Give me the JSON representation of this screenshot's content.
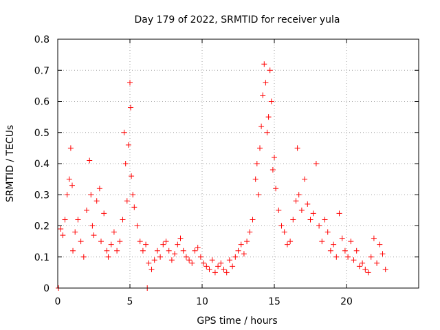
{
  "chart_data": {
    "type": "scatter",
    "title": "Day 179 of 2022, SRMTID for receiver yula",
    "xlabel": "GPS time / hours",
    "ylabel": "SRMTID / TECUs",
    "xlim": [
      0,
      25
    ],
    "ylim": [
      0,
      0.8
    ],
    "xticks": [
      0,
      5,
      10,
      15,
      20
    ],
    "yticks": [
      0,
      0.1,
      0.2,
      0.3,
      0.4,
      0.5,
      0.6,
      0.7,
      0.8
    ],
    "grid": true,
    "marker": "+",
    "color": "#ff0000",
    "series": [
      {
        "name": "SRMTID",
        "x": [
          0.05,
          6.2,
          0.2,
          0.35,
          0.5,
          0.65,
          0.8,
          0.9,
          1.0,
          1.05,
          1.2,
          1.4,
          1.6,
          1.8,
          2.0,
          2.2,
          2.3,
          2.4,
          2.5,
          2.7,
          2.9,
          3.0,
          3.2,
          3.4,
          3.5,
          3.7,
          3.9,
          4.1,
          4.3,
          4.5,
          4.6,
          4.7,
          4.8,
          4.9,
          5.0,
          5.05,
          5.1,
          5.2,
          5.3,
          5.5,
          5.7,
          5.9,
          6.1,
          6.3,
          6.5,
          6.7,
          6.9,
          7.1,
          7.3,
          7.5,
          7.7,
          7.9,
          8.1,
          8.3,
          8.5,
          8.7,
          8.9,
          9.1,
          9.3,
          9.5,
          9.7,
          9.9,
          10.1,
          10.3,
          10.5,
          10.7,
          10.9,
          11.1,
          11.3,
          11.5,
          11.7,
          11.9,
          12.1,
          12.3,
          12.5,
          12.7,
          12.9,
          13.1,
          13.3,
          13.5,
          13.7,
          13.8,
          13.9,
          14.0,
          14.1,
          14.2,
          14.3,
          14.4,
          14.5,
          14.6,
          14.7,
          14.8,
          14.9,
          15.0,
          15.1,
          15.3,
          15.5,
          15.7,
          15.9,
          16.1,
          16.3,
          16.5,
          16.6,
          16.7,
          16.9,
          17.1,
          17.3,
          17.5,
          17.7,
          17.9,
          18.1,
          18.3,
          18.5,
          18.7,
          18.9,
          19.1,
          19.3,
          19.5,
          19.7,
          19.9,
          20.1,
          20.3,
          20.5,
          20.7,
          20.9,
          21.1,
          21.3,
          21.5,
          21.7,
          21.9,
          22.1,
          22.3,
          22.5,
          22.7
        ],
        "y": [
          0.0,
          0.0,
          0.19,
          0.17,
          0.22,
          0.3,
          0.35,
          0.45,
          0.33,
          0.12,
          0.18,
          0.22,
          0.15,
          0.1,
          0.25,
          0.41,
          0.3,
          0.2,
          0.17,
          0.28,
          0.32,
          0.15,
          0.24,
          0.12,
          0.1,
          0.14,
          0.18,
          0.12,
          0.15,
          0.22,
          0.5,
          0.4,
          0.28,
          0.46,
          0.66,
          0.58,
          0.36,
          0.3,
          0.26,
          0.2,
          0.15,
          0.12,
          0.14,
          0.08,
          0.06,
          0.09,
          0.12,
          0.1,
          0.14,
          0.15,
          0.12,
          0.09,
          0.11,
          0.14,
          0.16,
          0.12,
          0.1,
          0.09,
          0.08,
          0.12,
          0.13,
          0.1,
          0.08,
          0.07,
          0.06,
          0.09,
          0.05,
          0.07,
          0.08,
          0.06,
          0.05,
          0.09,
          0.07,
          0.1,
          0.12,
          0.14,
          0.11,
          0.15,
          0.18,
          0.22,
          0.35,
          0.4,
          0.3,
          0.45,
          0.52,
          0.62,
          0.72,
          0.66,
          0.5,
          0.55,
          0.7,
          0.6,
          0.38,
          0.42,
          0.32,
          0.25,
          0.2,
          0.18,
          0.14,
          0.15,
          0.22,
          0.28,
          0.45,
          0.3,
          0.25,
          0.35,
          0.27,
          0.22,
          0.24,
          0.4,
          0.2,
          0.15,
          0.22,
          0.18,
          0.12,
          0.14,
          0.1,
          0.24,
          0.16,
          0.12,
          0.1,
          0.15,
          0.09,
          0.12,
          0.07,
          0.08,
          0.06,
          0.05,
          0.1,
          0.16,
          0.08,
          0.14,
          0.11,
          0.06
        ]
      }
    ]
  }
}
